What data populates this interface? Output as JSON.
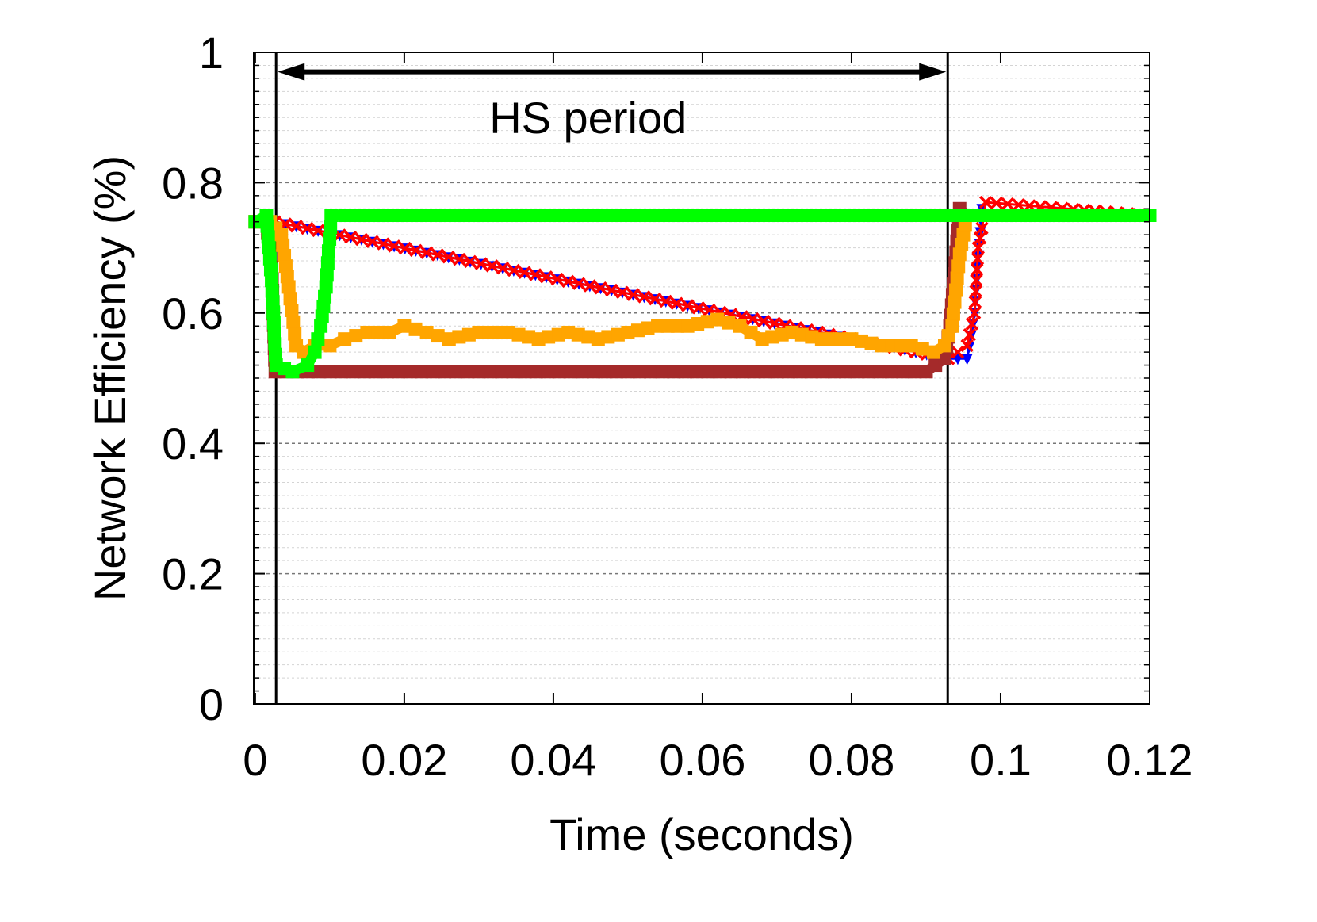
{
  "chart_data": {
    "type": "line",
    "xlabel": "Time (seconds)",
    "ylabel": "Network Efficiency (%)",
    "xlim": [
      -0.0002,
      0.12
    ],
    "ylim": [
      0,
      1
    ],
    "xticks": [
      0,
      0.02,
      0.04,
      0.06,
      0.08,
      0.1,
      0.12
    ],
    "xtick_labels": [
      "0",
      "0.02",
      "0.04",
      "0.06",
      "0.08",
      "0.1",
      "0.12"
    ],
    "yticks": [
      0,
      0.2,
      0.4,
      0.6,
      0.8,
      1
    ],
    "ytick_labels": [
      "0",
      "0.2",
      "0.4",
      "0.6",
      "0.8",
      "1"
    ],
    "grid": "horizontal dotted",
    "annotation": {
      "text": "HS period",
      "x_start": 0.0028,
      "x_end": 0.0929,
      "arrow_y": 0.97,
      "text_y": 0.9
    },
    "series": [
      {
        "color": "#0000ff",
        "marker": "triangle",
        "x": [
          0,
          0.0026,
          0.093,
          0.0955,
          0.0965,
          0.0975,
          0.0985,
          0.12
        ],
        "y": [
          0.74,
          0.74,
          0.53,
          0.53,
          0.6,
          0.76,
          0.75,
          0.75
        ]
      },
      {
        "color": "#ff0000",
        "marker": "x",
        "x": [
          0,
          0.0026,
          0.093,
          0.0955,
          0.0965,
          0.097,
          0.0975,
          0.098,
          0.12
        ],
        "y": [
          0.74,
          0.74,
          0.53,
          0.55,
          0.6,
          0.7,
          0.73,
          0.77,
          0.75
        ]
      },
      {
        "color": "#a52a2a",
        "marker": "square",
        "x": [
          0,
          0.0015,
          0.0022,
          0.0027,
          0.01,
          0.03,
          0.05,
          0.07,
          0.09,
          0.0925,
          0.0932,
          0.0938,
          0.0945,
          0.0955,
          0.12
        ],
        "y": [
          0.74,
          0.74,
          0.67,
          0.51,
          0.51,
          0.51,
          0.51,
          0.51,
          0.51,
          0.53,
          0.58,
          0.66,
          0.76,
          0.75,
          0.75
        ]
      },
      {
        "color": "#ffa500",
        "marker": "square",
        "x": [
          0,
          0.002,
          0.0035,
          0.0045,
          0.0055,
          0.0065,
          0.008,
          0.01,
          0.012,
          0.015,
          0.018,
          0.02,
          0.023,
          0.026,
          0.03,
          0.034,
          0.038,
          0.042,
          0.046,
          0.05,
          0.054,
          0.058,
          0.062,
          0.065,
          0.068,
          0.072,
          0.076,
          0.08,
          0.084,
          0.088,
          0.091,
          0.0925,
          0.0935,
          0.0945,
          0.0955,
          0.12
        ],
        "y": [
          0.74,
          0.74,
          0.72,
          0.64,
          0.55,
          0.54,
          0.55,
          0.55,
          0.56,
          0.57,
          0.57,
          0.58,
          0.57,
          0.56,
          0.57,
          0.57,
          0.56,
          0.57,
          0.56,
          0.57,
          0.58,
          0.58,
          0.59,
          0.58,
          0.56,
          0.57,
          0.56,
          0.56,
          0.55,
          0.55,
          0.54,
          0.55,
          0.58,
          0.69,
          0.75,
          0.75
        ]
      },
      {
        "color": "#00ff00",
        "marker": "square",
        "x": [
          0,
          0.0015,
          0.0022,
          0.0028,
          0.005,
          0.007,
          0.008,
          0.0088,
          0.0095,
          0.0102,
          0.012,
          0.03,
          0.06,
          0.09,
          0.12
        ],
        "y": [
          0.74,
          0.75,
          0.65,
          0.52,
          0.51,
          0.52,
          0.54,
          0.58,
          0.64,
          0.75,
          0.75,
          0.75,
          0.75,
          0.75,
          0.75
        ]
      }
    ]
  }
}
